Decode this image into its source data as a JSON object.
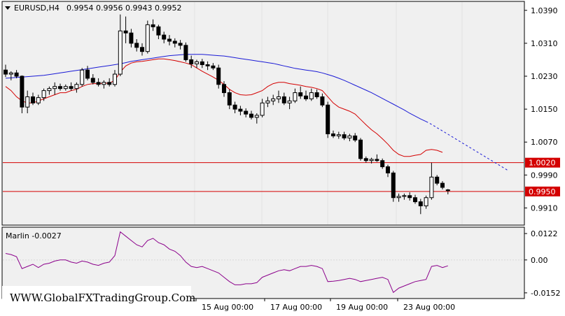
{
  "header": {
    "symbol": "EURUSD,H4",
    "ohlc": "0.9954 0.9956 0.9943 0.9952"
  },
  "watermark": "WWW.GlobalFXTradingGroup.Com",
  "colors": {
    "background": "#ffffff",
    "plot_bg": "#f0f0f0",
    "bull_candle": "#ffffff",
    "bear_candle": "#000000",
    "red_ma": "#d40000",
    "blue_ma": "#1a1ad6",
    "level_line": "#d40000",
    "oscillator": "#8b008b",
    "level_label_bg": "#d40000"
  },
  "chart_data": [
    {
      "type": "candlestick",
      "y_axis_ticks": [
        "1.0390",
        "1.0310",
        "1.0230",
        "1.0150",
        "1.0070",
        "0.9990",
        "0.9910"
      ],
      "ylim": [
        0.987,
        1.041
      ],
      "x_axis_labels": [
        "15 Aug 00:00",
        "17 Aug 00:00",
        "19 Aug 00:00",
        "23 Aug 00:00"
      ],
      "levels": [
        {
          "value": 1.002,
          "label": "1.0020"
        },
        {
          "value": 0.995,
          "label": "0.9950"
        }
      ],
      "candles": [
        [
          1.0245,
          1.0258,
          1.0228,
          1.0235
        ],
        [
          1.0235,
          1.0242,
          1.022,
          1.0238
        ],
        [
          1.0238,
          1.0245,
          1.0225,
          1.023
        ],
        [
          1.023,
          1.0232,
          1.014,
          1.0155
        ],
        [
          1.0155,
          1.0195,
          1.014,
          1.018
        ],
        [
          1.018,
          1.019,
          1.016,
          1.0165
        ],
        [
          1.0165,
          1.0185,
          1.016,
          1.0178
        ],
        [
          1.0178,
          1.02,
          1.017,
          1.0195
        ],
        [
          1.0195,
          1.0205,
          1.0185,
          1.02
        ],
        [
          1.02,
          1.0215,
          1.0185,
          1.0205
        ],
        [
          1.0205,
          1.0212,
          1.0195,
          1.02
        ],
        [
          1.02,
          1.021,
          1.0195,
          1.0205
        ],
        [
          1.0205,
          1.0215,
          1.0195,
          1.02
        ],
        [
          1.02,
          1.0215,
          1.019,
          1.021
        ],
        [
          1.021,
          1.025,
          1.0205,
          1.0245
        ],
        [
          1.0245,
          1.0255,
          1.022,
          1.0225
        ],
        [
          1.0225,
          1.0235,
          1.021,
          1.0215
        ],
        [
          1.0215,
          1.0225,
          1.0205,
          1.021
        ],
        [
          1.021,
          1.022,
          1.02,
          1.0215
        ],
        [
          1.0215,
          1.0225,
          1.0205,
          1.021
        ],
        [
          1.021,
          1.0245,
          1.0205,
          1.0235
        ],
        [
          1.0235,
          1.038,
          1.023,
          1.034
        ],
        [
          1.034,
          1.0375,
          1.031,
          1.0335
        ],
        [
          1.0335,
          1.0345,
          1.03,
          1.031
        ],
        [
          1.031,
          1.032,
          1.029,
          1.03
        ],
        [
          1.03,
          1.031,
          1.028,
          1.029
        ],
        [
          1.029,
          1.0365,
          1.0285,
          1.0355
        ],
        [
          1.0355,
          1.0368,
          1.034,
          1.035
        ],
        [
          1.035,
          1.0355,
          1.032,
          1.033
        ],
        [
          1.033,
          1.0338,
          1.031,
          1.032
        ],
        [
          1.032,
          1.033,
          1.0305,
          1.0315
        ],
        [
          1.0315,
          1.0322,
          1.03,
          1.031
        ],
        [
          1.031,
          1.0318,
          1.0295,
          1.0305
        ],
        [
          1.0305,
          1.0312,
          1.0265,
          1.027
        ],
        [
          1.027,
          1.028,
          1.025,
          1.026
        ],
        [
          1.026,
          1.027,
          1.025,
          1.0265
        ],
        [
          1.0265,
          1.0272,
          1.025,
          1.0258
        ],
        [
          1.0258,
          1.0266,
          1.0245,
          1.0255
        ],
        [
          1.0255,
          1.0262,
          1.0245,
          1.025
        ],
        [
          1.025,
          1.0258,
          1.02,
          1.021
        ],
        [
          1.021,
          1.0218,
          1.018,
          1.019
        ],
        [
          1.019,
          1.0198,
          1.015,
          1.016
        ],
        [
          1.016,
          1.0168,
          1.014,
          1.015
        ],
        [
          1.015,
          1.0158,
          1.0135,
          1.0145
        ],
        [
          1.0145,
          1.0152,
          1.013,
          1.0138
        ],
        [
          1.0138,
          1.0146,
          1.0125,
          1.013
        ],
        [
          1.013,
          1.014,
          1.0115,
          1.0135
        ],
        [
          1.0135,
          1.0175,
          1.013,
          1.0165
        ],
        [
          1.0165,
          1.018,
          1.0155,
          1.017
        ],
        [
          1.017,
          1.0185,
          1.016,
          1.0175
        ],
        [
          1.0175,
          1.0195,
          1.0165,
          1.018
        ],
        [
          1.018,
          1.019,
          1.016,
          1.0165
        ],
        [
          1.0165,
          1.018,
          1.015,
          1.017
        ],
        [
          1.017,
          1.02,
          1.0165,
          1.019
        ],
        [
          1.019,
          1.0205,
          1.0175,
          1.0182
        ],
        [
          1.0182,
          1.0195,
          1.017,
          1.0175
        ],
        [
          1.0175,
          1.02,
          1.017,
          1.019
        ],
        [
          1.019,
          1.0198,
          1.0175,
          1.018
        ],
        [
          1.018,
          1.0188,
          1.0155,
          1.016
        ],
        [
          1.016,
          1.0168,
          1.008,
          1.009
        ],
        [
          1.009,
          1.0098,
          1.008,
          1.0085
        ],
        [
          1.0085,
          1.0095,
          1.0078,
          1.0088
        ],
        [
          1.0088,
          1.0095,
          1.0075,
          1.008
        ],
        [
          1.008,
          1.009,
          1.0072,
          1.0085
        ],
        [
          1.0085,
          1.0092,
          1.007,
          1.0075
        ],
        [
          1.0075,
          1.008,
          1.0025,
          1.003
        ],
        [
          1.003,
          1.0035,
          1.002,
          1.0025
        ],
        [
          1.0025,
          1.0032,
          1.0018,
          1.0028
        ],
        [
          1.0028,
          1.004,
          1.0022,
          1.0025
        ],
        [
          1.0025,
          1.003,
          1.0005,
          1.001
        ],
        [
          1.001,
          1.0015,
          0.9985,
          0.9995
        ],
        [
          0.9995,
          1.0,
          0.9925,
          0.9935
        ],
        [
          0.9935,
          0.9945,
          0.9925,
          0.9938
        ],
        [
          0.9938,
          0.9945,
          0.993,
          0.994
        ],
        [
          0.994,
          0.9948,
          0.9928,
          0.9935
        ],
        [
          0.9935,
          0.9942,
          0.992,
          0.9925
        ],
        [
          0.9925,
          0.9932,
          0.9895,
          0.9915
        ],
        [
          0.9915,
          0.994,
          0.9908,
          0.9935
        ],
        [
          0.9935,
          1.002,
          0.993,
          0.9985
        ],
        [
          0.9985,
          0.999,
          0.9965,
          0.997
        ],
        [
          0.997,
          0.9975,
          0.9955,
          0.996
        ],
        [
          0.9954,
          0.9956,
          0.9943,
          0.9952
        ]
      ],
      "red_ma": [
        1.0205,
        1.0195,
        1.018,
        1.017,
        1.0165,
        1.0165,
        1.017,
        1.0175,
        1.018,
        1.0185,
        1.019,
        1.019,
        1.0195,
        1.0198,
        1.0205,
        1.021,
        1.0212,
        1.0212,
        1.0213,
        1.0213,
        1.022,
        1.024,
        1.0255,
        1.0262,
        1.0265,
        1.0266,
        1.0268,
        1.027,
        1.0272,
        1.0272,
        1.027,
        1.0268,
        1.0265,
        1.0262,
        1.0258,
        1.025,
        1.0242,
        1.0235,
        1.0228,
        1.022,
        1.021,
        1.0198,
        1.019,
        1.0185,
        1.0184,
        1.0185,
        1.019,
        1.0195,
        1.0205,
        1.0212,
        1.0215,
        1.0215,
        1.0212,
        1.021,
        1.0208,
        1.0205,
        1.0203,
        1.02,
        1.0195,
        1.018,
        1.0165,
        1.0155,
        1.015,
        1.0145,
        1.0138,
        1.0125,
        1.0112,
        1.01,
        1.009,
        1.0078,
        1.0065,
        1.005,
        1.004,
        1.0035,
        1.0035,
        1.0038,
        1.004,
        1.005,
        1.0052,
        1.005,
        1.0045
      ],
      "blue_ma": [
        1.0225,
        1.0226,
        1.0227,
        1.0228,
        1.0229,
        1.023,
        1.0231,
        1.0232,
        1.0234,
        1.0236,
        1.0238,
        1.024,
        1.0242,
        1.0244,
        1.0246,
        1.0248,
        1.025,
        1.0252,
        1.0254,
        1.0256,
        1.0258,
        1.026,
        1.0263,
        1.0266,
        1.0268,
        1.027,
        1.0272,
        1.0274,
        1.0276,
        1.0278,
        1.028,
        1.0281,
        1.0282,
        1.0283,
        1.0283,
        1.0283,
        1.0283,
        1.0282,
        1.0281,
        1.028,
        1.0279,
        1.0277,
        1.0275,
        1.0273,
        1.0271,
        1.0269,
        1.0267,
        1.0265,
        1.0263,
        1.0261,
        1.0258,
        1.0255,
        1.0252,
        1.0249,
        1.0247,
        1.0245,
        1.0243,
        1.0241,
        1.0238,
        1.0234,
        1.023,
        1.0225,
        1.022,
        1.0214,
        1.0208,
        1.0202,
        1.0196,
        1.019,
        1.0183,
        1.0176,
        1.0169,
        1.0162,
        1.0155,
        1.0148,
        1.014,
        1.0133,
        1.0126,
        1.012
      ],
      "blue_ma_projection": [
        1.0113,
        1.0105,
        1.0097,
        1.0089,
        1.0081,
        1.0073,
        1.0065,
        1.0057,
        1.0049,
        1.0041,
        1.0033,
        1.0025,
        1.0017,
        1.0009,
        1.0001
      ]
    },
    {
      "type": "line",
      "indicator_label": "Marlin -0.0027",
      "y_axis_ticks": [
        "0.0122",
        "0.00",
        "-0.0152"
      ],
      "ylim": [
        -0.0175,
        0.0148
      ],
      "values": [
        0.003,
        0.0025,
        0.0015,
        -0.004,
        -0.003,
        -0.002,
        -0.0035,
        -0.002,
        -0.0015,
        -0.0005,
        0.0,
        0.0,
        -0.001,
        -0.0015,
        -0.0005,
        -0.001,
        -0.002,
        -0.0025,
        -0.0015,
        -0.001,
        0.002,
        0.013,
        0.011,
        0.009,
        0.007,
        0.006,
        0.009,
        0.01,
        0.008,
        0.007,
        0.005,
        0.004,
        0.002,
        -0.001,
        -0.003,
        -0.0035,
        -0.003,
        -0.004,
        -0.005,
        -0.006,
        -0.008,
        -0.01,
        -0.0115,
        -0.0115,
        -0.011,
        -0.011,
        -0.0105,
        -0.008,
        -0.007,
        -0.006,
        -0.005,
        -0.0045,
        -0.005,
        -0.004,
        -0.003,
        -0.003,
        -0.0025,
        -0.003,
        -0.004,
        -0.01,
        -0.0098,
        -0.0095,
        -0.009,
        -0.0085,
        -0.009,
        -0.01,
        -0.0095,
        -0.009,
        -0.0085,
        -0.008,
        -0.009,
        -0.015,
        -0.013,
        -0.012,
        -0.011,
        -0.01,
        -0.0095,
        -0.009,
        -0.003,
        -0.0025,
        -0.0035,
        -0.0027
      ]
    }
  ]
}
